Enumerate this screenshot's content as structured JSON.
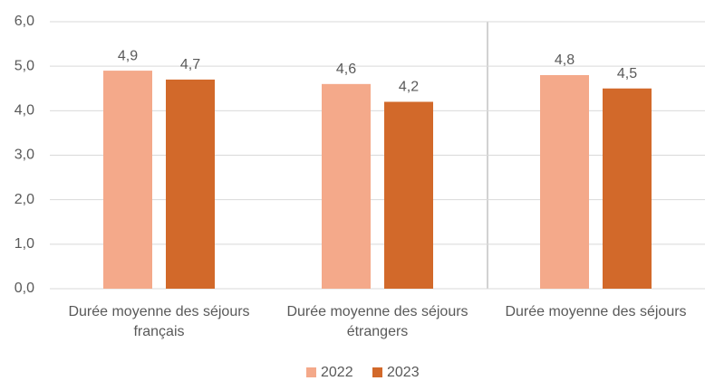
{
  "chart_data": {
    "type": "bar",
    "categories": [
      "Durée moyenne des séjours français",
      "Durée moyenne des séjours étrangers",
      "Durée moyenne des séjours"
    ],
    "series": [
      {
        "name": "2022",
        "color": "#f4a98a",
        "values": [
          4.9,
          4.6,
          4.8
        ],
        "value_labels": [
          "4,9",
          "4,6",
          "4,8"
        ]
      },
      {
        "name": "2023",
        "color": "#d2692a",
        "values": [
          4.7,
          4.2,
          4.5
        ],
        "value_labels": [
          "4,7",
          "4,2",
          "4,5"
        ]
      }
    ],
    "ylim": [
      0,
      6
    ],
    "yticks": [
      {
        "value": 0,
        "label": "0,0"
      },
      {
        "value": 1,
        "label": "1,0"
      },
      {
        "value": 2,
        "label": "2,0"
      },
      {
        "value": 3,
        "label": "3,0"
      },
      {
        "value": 4,
        "label": "4,0"
      },
      {
        "value": 5,
        "label": "5,0"
      },
      {
        "value": 6,
        "label": "6,0"
      }
    ],
    "grid": true,
    "legend": "bottom"
  }
}
